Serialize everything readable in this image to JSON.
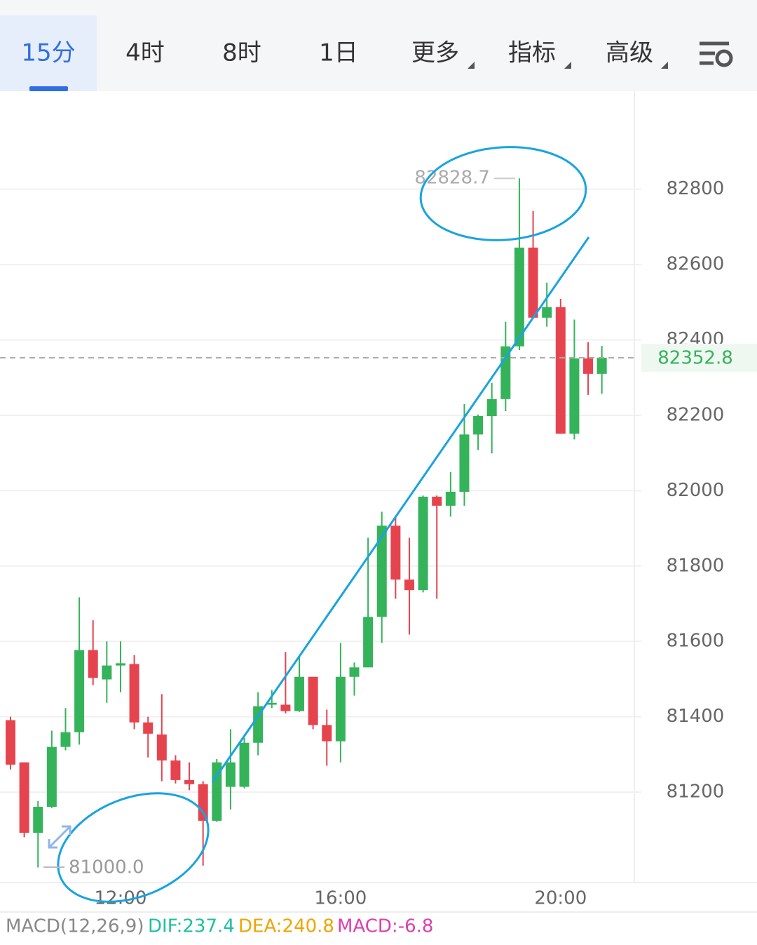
{
  "tabs": [
    "15分",
    "4时",
    "8时",
    "1日",
    "更多",
    "指标",
    "高级"
  ],
  "macd": {
    "name": "MACD(12,26,9)",
    "dif": "DIF:237.4",
    "dea": "DEA:240.8",
    "hist": "MACD:-6.8"
  },
  "chart_data": {
    "type": "candlestick",
    "categories": [
      null,
      null,
      null,
      null,
      null,
      null,
      null,
      null,
      "12:00",
      null,
      null,
      null,
      null,
      null,
      null,
      null,
      null,
      null,
      null,
      null,
      null,
      null,
      null,
      null,
      "16:00",
      null,
      null,
      null,
      null,
      null,
      null,
      null,
      null,
      null,
      null,
      null,
      null,
      null,
      null,
      null,
      "20:00",
      null,
      null,
      null
    ],
    "open": [
      81391,
      81279,
      81092,
      81161,
      81320,
      81359,
      81577,
      81499,
      81536,
      81540,
      81385,
      81353,
      81284,
      81232,
      81221,
      81124,
      81214,
      81214,
      81331,
      81432,
      81432,
      81415,
      81506,
      81378,
      81335,
      81506,
      81531,
      81665,
      81907,
      81764,
      81736,
      81984,
      81960,
      81997,
      82149,
      82198,
      82243,
      82383,
      82645,
      82459,
      82487,
      82151,
      82351,
      82310
    ],
    "high": [
      81400,
      81279,
      81176,
      81363,
      81423,
      81717,
      81656,
      81600,
      81600,
      81564,
      81400,
      81460,
      81298,
      81279,
      81229,
      81288,
      81367,
      81344,
      81465,
      81471,
      81572,
      81559,
      81506,
      81419,
      81596,
      81544,
      81875,
      81944,
      81931,
      81875,
      81987,
      81987,
      82049,
      82230,
      82202,
      82286,
      82448,
      82828.7,
      82742,
      82552,
      82509,
      82454,
      82394,
      82384
    ],
    "low": [
      81260,
      81080,
      81000,
      81158,
      81311,
      81326,
      81484,
      81437,
      81465,
      81367,
      81292,
      81229,
      81223,
      81205,
      81005,
      81121,
      81154,
      81210,
      81298,
      81423,
      81409,
      81413,
      81367,
      81270,
      81279,
      81456,
      81531,
      81596,
      81713,
      81618,
      81730,
      81713,
      81931,
      81960,
      82108,
      82099,
      82211,
      82373,
      82459,
      82435,
      82151,
      82136,
      82254,
      82257
    ],
    "close": [
      81273,
      81092,
      81161,
      81320,
      81359,
      81577,
      81503,
      81536,
      81542,
      81385,
      81355,
      81284,
      81232,
      81221,
      81124,
      81279,
      81279,
      81331,
      81428,
      81437,
      81415,
      81506,
      81378,
      81335,
      81506,
      81531,
      81665,
      81907,
      81764,
      81736,
      81984,
      81960,
      81997,
      82149,
      82198,
      82243,
      82383,
      82645,
      82459,
      82487,
      82151,
      82351,
      82310,
      82352.8
    ],
    "up_color": "#35b35a",
    "down_color": "#e5444f",
    "low_label": "81000.0",
    "ylim": [
      80960,
      83060
    ],
    "yticks": [
      81200,
      81400,
      81600,
      81800,
      82000,
      82200,
      82400,
      82600,
      82800
    ],
    "grid": true
  }
}
